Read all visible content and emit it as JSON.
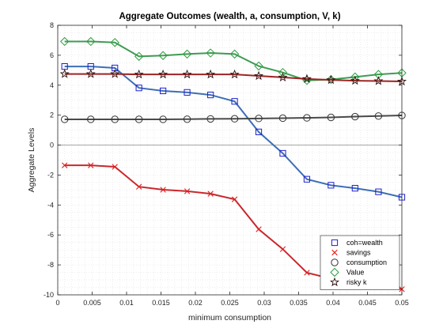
{
  "chart_data": {
    "type": "line",
    "title": "Aggregate Outcomes (wealth, a, consumption, V, k)",
    "xlabel": "minimum consumption",
    "ylabel": "Aggregate Levels",
    "xlim": [
      0,
      0.05
    ],
    "ylim": [
      -10,
      8
    ],
    "xticks": [
      0,
      0.005,
      0.01,
      0.015,
      0.02,
      0.025,
      0.03,
      0.035,
      0.04,
      0.045,
      0.05
    ],
    "xtick_labels": [
      "0",
      "0.005",
      "0.01",
      "0.015",
      "0.02",
      "0.025",
      "0.03",
      "0.035",
      "0.04",
      "0.045",
      "0.05"
    ],
    "yticks": [
      -10,
      -8,
      -6,
      -4,
      -2,
      0,
      2,
      4,
      6,
      8
    ],
    "ytick_labels": [
      "-10",
      "-8",
      "-6",
      "-4",
      "-2",
      "0",
      "2",
      "4",
      "6",
      "8"
    ],
    "grid": "minor-dotted",
    "zero_line": true,
    "legend_position": "bottom-right",
    "x": [
      0.001,
      0.0048,
      0.0083,
      0.0118,
      0.0153,
      0.0188,
      0.0222,
      0.0257,
      0.0292,
      0.0327,
      0.0362,
      0.0397,
      0.0432,
      0.0466,
      0.05
    ],
    "series": [
      {
        "name": "coh=wealth",
        "marker": "square",
        "marker_color": "#1f1fcf",
        "line_color": "#3d6fb6",
        "values": [
          5.25,
          5.25,
          5.15,
          3.82,
          3.62,
          3.52,
          3.35,
          2.92,
          0.88,
          -0.55,
          -2.28,
          -2.68,
          -2.88,
          -3.12,
          -3.48
        ]
      },
      {
        "name": "savings",
        "marker": "x",
        "marker_color": "#e02020",
        "line_color": "#c8282c",
        "values": [
          -1.35,
          -1.35,
          -1.45,
          -2.78,
          -2.98,
          -3.08,
          -3.25,
          -3.62,
          -5.62,
          -6.95,
          -8.52,
          -8.92,
          -9.12,
          -9.32,
          -9.62
        ]
      },
      {
        "name": "consumption",
        "marker": "circle",
        "marker_color": "#333333",
        "line_color": "#4a4a4a",
        "values": [
          1.72,
          1.72,
          1.72,
          1.72,
          1.72,
          1.73,
          1.75,
          1.76,
          1.78,
          1.8,
          1.82,
          1.85,
          1.9,
          1.94,
          1.98
        ]
      },
      {
        "name": "Value",
        "marker": "diamond",
        "marker_color": "#2e9e3e",
        "line_color": "#3f9b53",
        "values": [
          6.92,
          6.92,
          6.85,
          5.92,
          5.98,
          6.08,
          6.15,
          6.08,
          5.28,
          4.85,
          4.32,
          4.38,
          4.55,
          4.72,
          4.82
        ]
      },
      {
        "name": "risky k",
        "marker": "star",
        "marker_color": "#2a0a0a",
        "line_color": "#9e2424",
        "values": [
          4.75,
          4.75,
          4.75,
          4.72,
          4.72,
          4.72,
          4.72,
          4.72,
          4.62,
          4.52,
          4.42,
          4.35,
          4.3,
          4.28,
          4.25
        ]
      }
    ]
  }
}
